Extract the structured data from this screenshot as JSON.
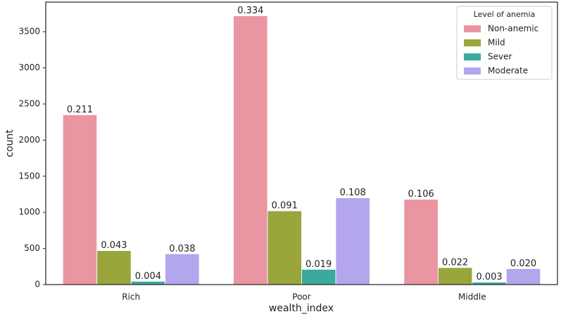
{
  "chart_data": {
    "type": "bar",
    "x_label": "wealth_index",
    "y_label": "count",
    "categories": [
      "Rich",
      "Poor",
      "Middle"
    ],
    "series": [
      {
        "name": "Non-anemic",
        "color": "#ea96a2",
        "values": [
          2350,
          3720,
          1180
        ],
        "proportion_labels": [
          "0.211",
          "0.334",
          "0.106"
        ]
      },
      {
        "name": "Mild",
        "color": "#9aa53b",
        "values": [
          470,
          1020,
          235
        ],
        "proportion_labels": [
          "0.043",
          "0.091",
          "0.022"
        ]
      },
      {
        "name": "Sever",
        "color": "#3ba99c",
        "values": [
          45,
          210,
          33
        ],
        "proportion_labels": [
          "0.004",
          "0.019",
          "0.003"
        ]
      },
      {
        "name": "Moderate",
        "color": "#b4a6ec",
        "values": [
          425,
          1200,
          220
        ],
        "proportion_labels": [
          "0.038",
          "0.108",
          "0.020"
        ]
      }
    ],
    "legend_title": "Level of anemia",
    "legend": "upper right",
    "ylim": [
      0,
      3910
    ],
    "yticks": [
      0,
      500,
      1000,
      1500,
      2000,
      2500,
      3000,
      3500
    ],
    "grid": false
  }
}
